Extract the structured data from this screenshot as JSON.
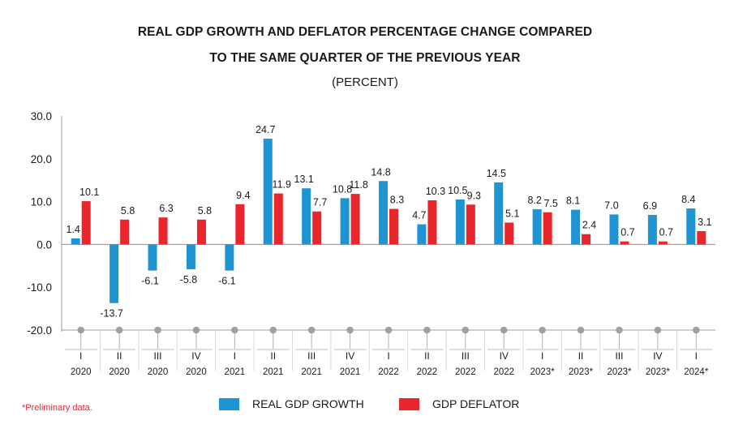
{
  "title_line1": "REAL GDP GROWTH AND DEFLATOR PERCENTAGE CHANGE COMPARED",
  "title_line2": "TO THE SAME QUARTER OF THE PREVIOUS YEAR",
  "units": "(PERCENT)",
  "footnote": "*Preliminary data.",
  "colors": {
    "gdp": "#1f94d2",
    "deflator": "#e8262b",
    "axis": "#9e9e9e",
    "grid": "#d9d9d9",
    "zero": "#e26c6c"
  },
  "chart_data": {
    "type": "bar",
    "ylim": [
      -20,
      30
    ],
    "yticks": [
      "30.0",
      "20.0",
      "10.0",
      "0.0",
      "-10.0",
      "-20.0"
    ],
    "ytick_values": [
      30,
      20,
      10,
      0,
      -10,
      -20
    ],
    "categories": [
      {
        "q": "I",
        "y": "2020"
      },
      {
        "q": "II",
        "y": "2020"
      },
      {
        "q": "III",
        "y": "2020"
      },
      {
        "q": "IV",
        "y": "2020"
      },
      {
        "q": "I",
        "y": "2021"
      },
      {
        "q": "II",
        "y": "2021"
      },
      {
        "q": "III",
        "y": "2021"
      },
      {
        "q": "IV",
        "y": "2021"
      },
      {
        "q": "I",
        "y": "2022"
      },
      {
        "q": "II",
        "y": "2022"
      },
      {
        "q": "III",
        "y": "2022"
      },
      {
        "q": "IV",
        "y": "2022"
      },
      {
        "q": "I",
        "y": "2023*"
      },
      {
        "q": "II",
        "y": "2023*"
      },
      {
        "q": "III",
        "y": "2023*"
      },
      {
        "q": "IV",
        "y": "2023*"
      },
      {
        "q": "I",
        "y": "2024*"
      }
    ],
    "series": [
      {
        "name": "REAL GDP GROWTH",
        "color": "#1f94d2",
        "values": [
          1.4,
          -13.7,
          -6.1,
          -5.8,
          -6.1,
          24.7,
          13.1,
          10.8,
          14.8,
          4.7,
          10.5,
          14.5,
          8.2,
          8.1,
          7.0,
          6.9,
          8.4
        ],
        "labels": [
          "1.4",
          "-13.7",
          "-6.1",
          "-5.8",
          "-6.1",
          "24.7",
          "13.1",
          "10.8",
          "14.8",
          "4.7",
          "10.5",
          "14.5",
          "8.2",
          "8.1",
          "7.0",
          "6.9",
          "8.4"
        ]
      },
      {
        "name": "GDP DEFLATOR",
        "color": "#e8262b",
        "values": [
          10.1,
          5.8,
          6.3,
          5.8,
          9.4,
          11.9,
          7.7,
          11.8,
          8.3,
          10.3,
          9.3,
          5.1,
          7.5,
          2.4,
          0.7,
          0.7,
          3.1
        ],
        "labels": [
          "10.1",
          "5.8",
          "6.3",
          "5.8",
          "9.4",
          "11.9",
          "7.7",
          "11.8",
          "8.3",
          "10.3",
          "9.3",
          "5.1",
          "7.5",
          "2.4",
          "0.7",
          "0.7",
          "3.1"
        ]
      }
    ],
    "legend_position": "bottom",
    "grid": false
  }
}
